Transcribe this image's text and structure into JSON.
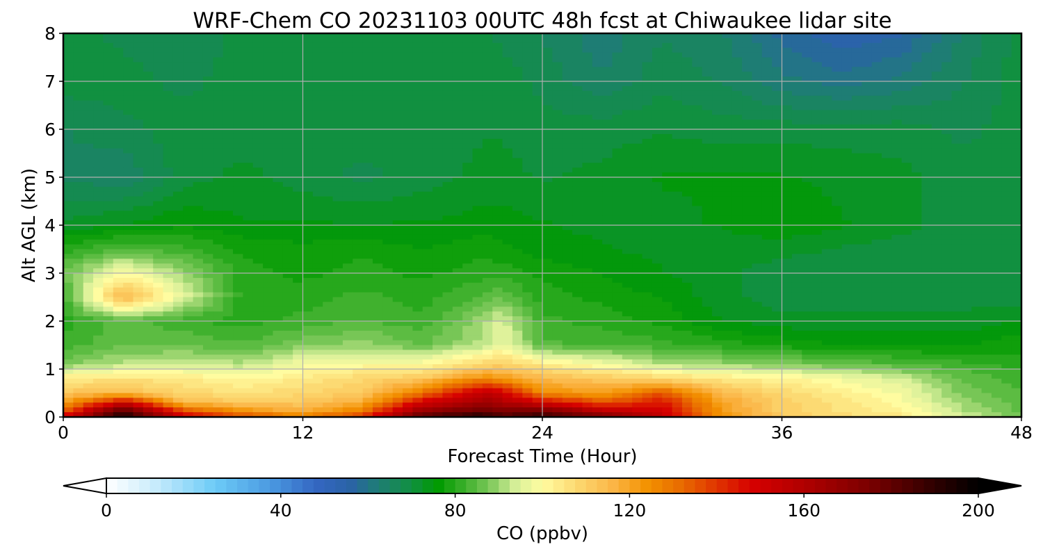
{
  "chart_data": {
    "type": "heatmap",
    "title": "WRF-Chem CO  20231103 00UTC 48h fcst at Chiwaukee lidar site",
    "xlabel": "Forecast Time (Hour)",
    "ylabel": "Alt AGL (km)",
    "xlim": [
      0,
      48
    ],
    "ylim": [
      0,
      8
    ],
    "x_ticks": [
      "0",
      "12",
      "24",
      "36",
      "48"
    ],
    "y_ticks": [
      "0",
      "1",
      "2",
      "3",
      "4",
      "5",
      "6",
      "7",
      "8"
    ],
    "grid": true,
    "colorbar": {
      "label": "CO  (ppbv)",
      "min": 0,
      "max": 200,
      "extend": "both",
      "tick_values": [
        0,
        40,
        80,
        120,
        160,
        200
      ],
      "tick_labels": [
        "0",
        "40",
        "80",
        "120",
        "160",
        "200"
      ],
      "stops": [
        {
          "v": 0,
          "c": "#ffffff"
        },
        {
          "v": 10,
          "c": "#cfeefc"
        },
        {
          "v": 25,
          "c": "#6ccbf7"
        },
        {
          "v": 38,
          "c": "#4a98e0"
        },
        {
          "v": 48,
          "c": "#3466c2"
        },
        {
          "v": 56,
          "c": "#2a63a6"
        },
        {
          "v": 62,
          "c": "#1f7c77"
        },
        {
          "v": 70,
          "c": "#119040"
        },
        {
          "v": 76,
          "c": "#009a00"
        },
        {
          "v": 82,
          "c": "#3aaf2a"
        },
        {
          "v": 88,
          "c": "#7dc85a"
        },
        {
          "v": 94,
          "c": "#d8f09a"
        },
        {
          "v": 100,
          "c": "#fffca0"
        },
        {
          "v": 108,
          "c": "#fcd870"
        },
        {
          "v": 116,
          "c": "#fbb648"
        },
        {
          "v": 124,
          "c": "#f39200"
        },
        {
          "v": 132,
          "c": "#e86a00"
        },
        {
          "v": 140,
          "c": "#e03400"
        },
        {
          "v": 148,
          "c": "#d60000"
        },
        {
          "v": 160,
          "c": "#b00000"
        },
        {
          "v": 175,
          "c": "#7a0000"
        },
        {
          "v": 190,
          "c": "#2e0000"
        },
        {
          "v": 200,
          "c": "#000000"
        }
      ]
    },
    "field": {
      "x": [
        0,
        3,
        6,
        9,
        12,
        15,
        18,
        21,
        22,
        24,
        27,
        30,
        33,
        36,
        39,
        42,
        45,
        48
      ],
      "y": [
        0,
        0.1,
        0.3,
        0.5,
        0.8,
        1.1,
        1.5,
        2.0,
        2.5,
        3.0,
        3.5,
        4.0,
        5.0,
        6.0,
        7.0,
        8.0
      ],
      "z": [
        [
          150,
          195,
          150,
          140,
          130,
          142,
          185,
          195,
          185,
          190,
          178,
          155,
          125,
          112,
          108,
          105,
          95,
          88
        ],
        [
          135,
          190,
          140,
          125,
          118,
          130,
          170,
          180,
          175,
          180,
          160,
          150,
          122,
          110,
          106,
          102,
          92,
          86
        ],
        [
          120,
          150,
          115,
          112,
          112,
          118,
          150,
          165,
          160,
          150,
          135,
          145,
          120,
          110,
          105,
          100,
          90,
          85
        ],
        [
          112,
          115,
          108,
          106,
          108,
          112,
          130,
          155,
          150,
          125,
          120,
          135,
          115,
          108,
          103,
          98,
          88,
          84
        ],
        [
          104,
          106,
          104,
          100,
          104,
          108,
          112,
          125,
          122,
          115,
          112,
          108,
          104,
          102,
          98,
          94,
          86,
          82
        ],
        [
          88,
          92,
          94,
          92,
          98,
          100,
          100,
          108,
          110,
          104,
          98,
          92,
          90,
          88,
          86,
          84,
          82,
          80
        ],
        [
          82,
          86,
          86,
          84,
          88,
          90,
          86,
          92,
          98,
          84,
          84,
          82,
          80,
          78,
          76,
          76,
          76,
          78
        ],
        [
          80,
          85,
          82,
          80,
          82,
          84,
          82,
          90,
          95,
          82,
          80,
          78,
          74,
          72,
          72,
          72,
          72,
          74
        ],
        [
          82,
          116,
          96,
          80,
          80,
          82,
          80,
          84,
          86,
          80,
          78,
          76,
          72,
          70,
          70,
          70,
          70,
          70
        ],
        [
          86,
          100,
          90,
          80,
          78,
          80,
          78,
          80,
          80,
          78,
          76,
          74,
          72,
          70,
          70,
          70,
          70,
          70
        ],
        [
          80,
          84,
          82,
          78,
          77,
          78,
          76,
          78,
          77,
          75,
          74,
          73,
          72,
          72,
          71,
          70,
          70,
          70
        ],
        [
          72,
          74,
          76,
          74,
          74,
          74,
          74,
          75,
          75,
          74,
          73,
          73,
          74,
          76,
          74,
          72,
          70,
          70
        ],
        [
          66,
          64,
          70,
          72,
          70,
          68,
          70,
          72,
          72,
          71,
          72,
          74,
          74,
          74,
          73,
          72,
          70,
          70
        ],
        [
          66,
          68,
          70,
          70,
          70,
          70,
          70,
          71,
          71,
          70,
          70,
          71,
          70,
          70,
          70,
          70,
          68,
          70
        ],
        [
          70,
          70,
          68,
          70,
          70,
          70,
          70,
          70,
          70,
          68,
          64,
          68,
          66,
          62,
          60,
          62,
          66,
          70
        ],
        [
          70,
          68,
          66,
          70,
          70,
          70,
          70,
          70,
          68,
          66,
          62,
          66,
          64,
          58,
          54,
          56,
          64,
          70
        ]
      ]
    }
  }
}
